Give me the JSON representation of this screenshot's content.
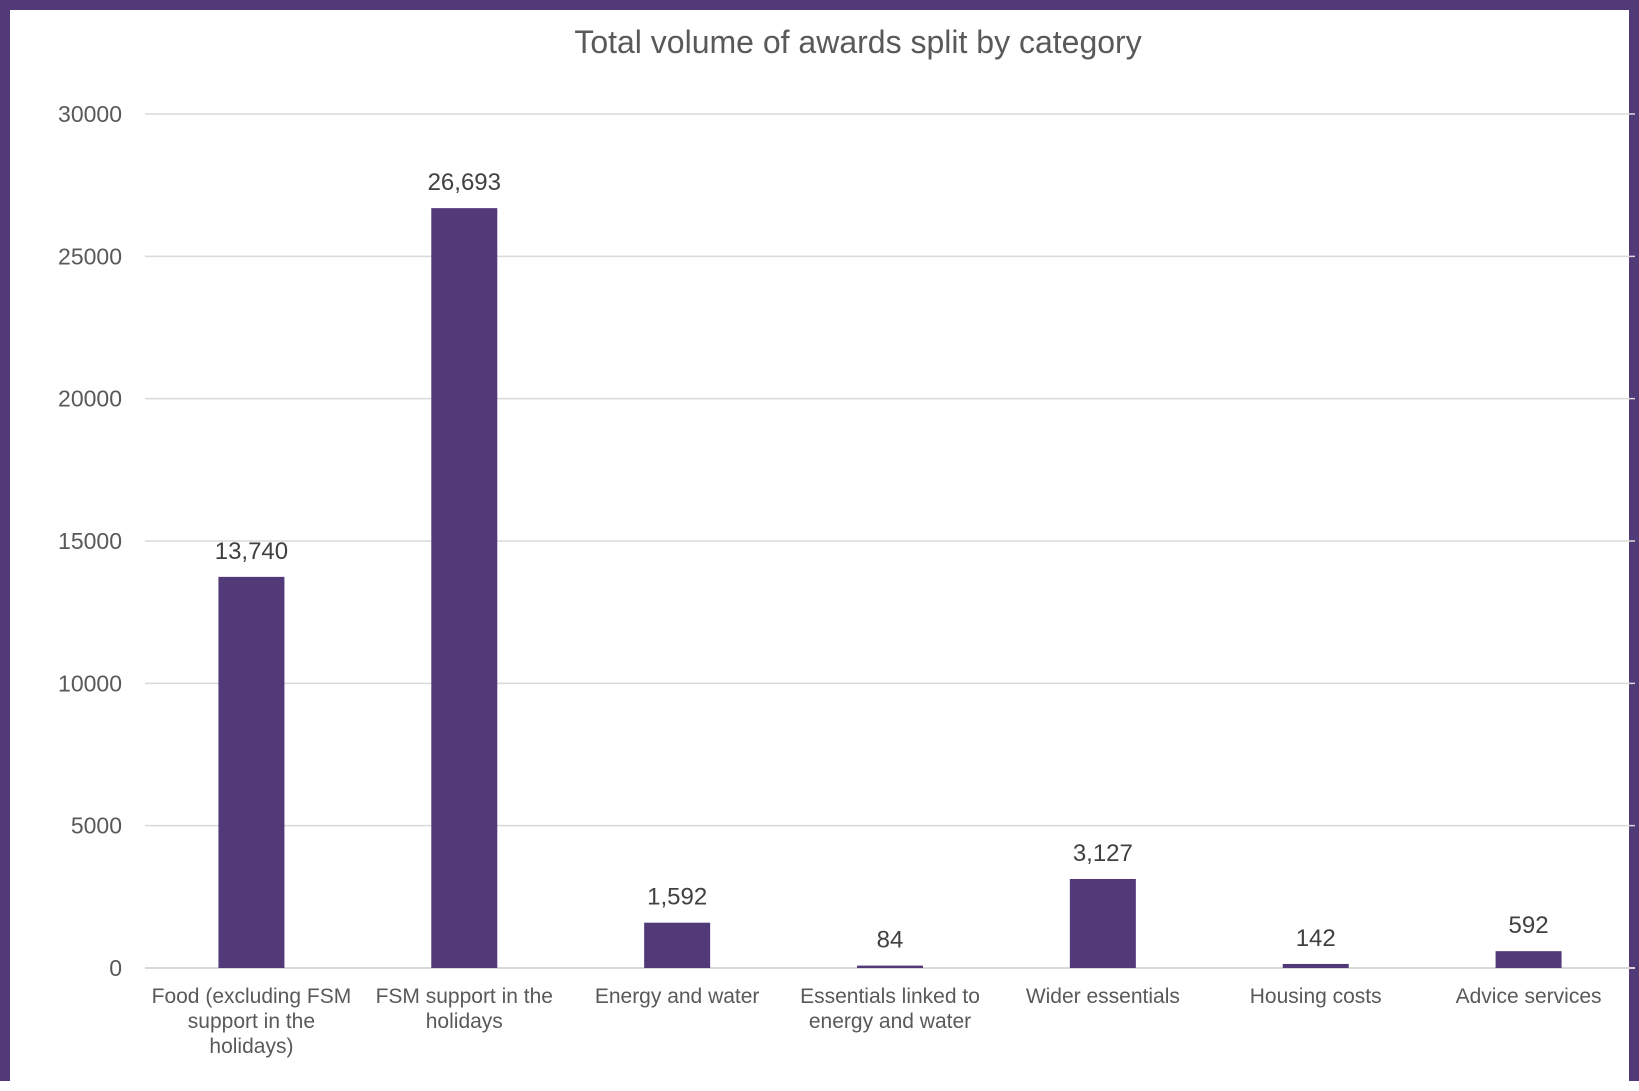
{
  "chart_data": {
    "type": "bar",
    "title": "Total volume of awards split by category",
    "xlabel": "",
    "ylabel": "",
    "ylim": [
      0,
      30000
    ],
    "yticks": [
      0,
      5000,
      10000,
      15000,
      20000,
      25000,
      30000
    ],
    "ytick_labels": [
      "0",
      "5000",
      "10000",
      "15000",
      "20000",
      "25000",
      "30000"
    ],
    "categories": [
      [
        "Food (excluding FSM",
        "support in the",
        "holidays)"
      ],
      [
        "FSM support in the",
        "holidays"
      ],
      [
        "Energy and water"
      ],
      [
        "Essentials linked to",
        "energy and water"
      ],
      [
        "Wider essentials"
      ],
      [
        "Housing costs"
      ],
      [
        "Advice services"
      ]
    ],
    "values": [
      13740,
      26693,
      1592,
      84,
      3127,
      142,
      592
    ],
    "value_labels": [
      "13,740",
      "26,693",
      "1,592",
      "84",
      "3,127",
      "142",
      "592"
    ],
    "grid": true,
    "legend": "none",
    "bar_color": "#523a78",
    "frame_color": "#523a78",
    "grid_color": "#d9d9d9"
  }
}
